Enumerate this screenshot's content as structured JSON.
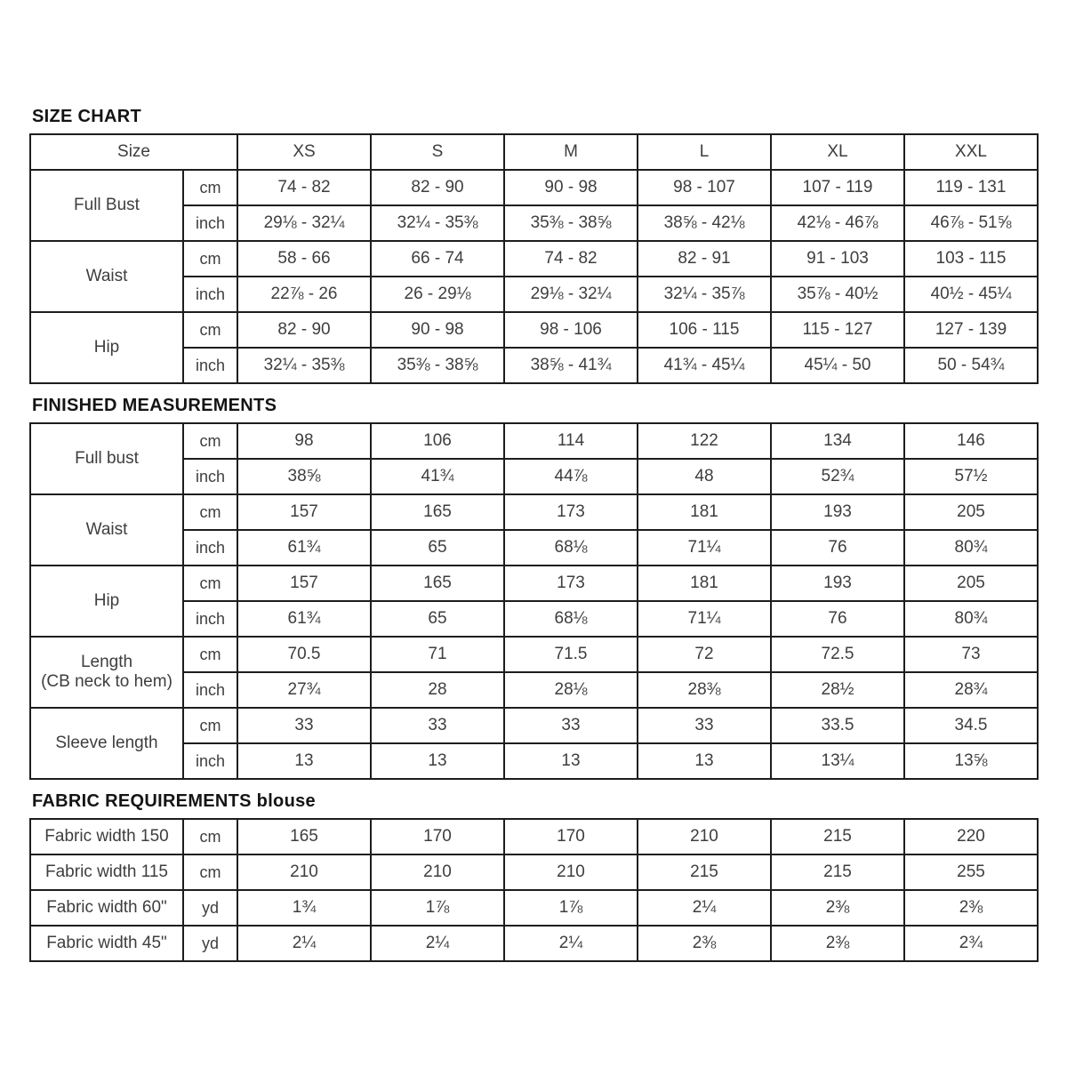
{
  "colors": {
    "background": "#ffffff",
    "border": "#1d1d1d",
    "table_text": "#3e3e3e",
    "title_text": "#141414"
  },
  "sections": {
    "size_chart": {
      "title": "SIZE CHART",
      "columns": [
        "Size",
        "XS",
        "S",
        "M",
        "L",
        "XL",
        "XXL"
      ],
      "groups": [
        {
          "label": "Full Bust",
          "rows": [
            {
              "unit": "cm",
              "values": [
                "74 - 82",
                "82 - 90",
                "90 - 98",
                "98 - 107",
                "107 - 119",
                "119 - 131"
              ]
            },
            {
              "unit": "inch",
              "values": [
                "29⅛ - 32¼",
                "32¼ - 35⅜",
                "35⅜ - 38⅝",
                "38⅝ - 42⅛",
                "42⅛ - 46⅞",
                "46⅞ - 51⅝"
              ]
            }
          ]
        },
        {
          "label": "Waist",
          "rows": [
            {
              "unit": "cm",
              "values": [
                "58 - 66",
                "66 - 74",
                "74 - 82",
                "82 - 91",
                "91 - 103",
                "103 - 115"
              ]
            },
            {
              "unit": "inch",
              "values": [
                "22⅞ - 26",
                "26 - 29⅛",
                "29⅛ - 32¼",
                "32¼ - 35⅞",
                "35⅞ - 40½",
                "40½ - 45¼"
              ]
            }
          ]
        },
        {
          "label": "Hip",
          "rows": [
            {
              "unit": "cm",
              "values": [
                "82 - 90",
                "90 - 98",
                "98 - 106",
                "106 - 115",
                "115 - 127",
                "127 - 139"
              ]
            },
            {
              "unit": "inch",
              "values": [
                "32¼ - 35⅜",
                "35⅜ - 38⅝",
                "38⅝ - 41¾",
                "41¾ - 45¼",
                "45¼ - 50",
                "50 - 54¾"
              ]
            }
          ]
        }
      ]
    },
    "finished_measurements": {
      "title": "FINISHED MEASUREMENTS",
      "groups": [
        {
          "label": "Full bust",
          "rows": [
            {
              "unit": "cm",
              "values": [
                "98",
                "106",
                "114",
                "122",
                "134",
                "146"
              ]
            },
            {
              "unit": "inch",
              "values": [
                "38⅝",
                "41¾",
                "44⅞",
                "48",
                "52¾",
                "57½"
              ]
            }
          ]
        },
        {
          "label": "Waist",
          "rows": [
            {
              "unit": "cm",
              "values": [
                "157",
                "165",
                "173",
                "181",
                "193",
                "205"
              ]
            },
            {
              "unit": "inch",
              "values": [
                "61¾",
                "65",
                "68⅛",
                "71¼",
                "76",
                "80¾"
              ]
            }
          ]
        },
        {
          "label": "Hip",
          "rows": [
            {
              "unit": "cm",
              "values": [
                "157",
                "165",
                "173",
                "181",
                "193",
                "205"
              ]
            },
            {
              "unit": "inch",
              "values": [
                "61¾",
                "65",
                "68⅛",
                "71¼",
                "76",
                "80¾"
              ]
            }
          ]
        },
        {
          "label": "Length\n(CB neck to hem)",
          "rows": [
            {
              "unit": "cm",
              "values": [
                "70.5",
                "71",
                "71.5",
                "72",
                "72.5",
                "73"
              ]
            },
            {
              "unit": "inch",
              "values": [
                "27¾",
                "28",
                "28⅛",
                "28⅜",
                "28½",
                "28¾"
              ]
            }
          ]
        },
        {
          "label": "Sleeve length",
          "rows": [
            {
              "unit": "cm",
              "values": [
                "33",
                "33",
                "33",
                "33",
                "33.5",
                "34.5"
              ]
            },
            {
              "unit": "inch",
              "values": [
                "13",
                "13",
                "13",
                "13",
                "13¼",
                "13⅝"
              ]
            }
          ]
        }
      ]
    },
    "fabric_requirements": {
      "title": "FABRIC REQUIREMENTS blouse",
      "rows": [
        {
          "label": "Fabric width 150",
          "unit": "cm",
          "values": [
            "165",
            "170",
            "170",
            "210",
            "215",
            "220"
          ]
        },
        {
          "label": "Fabric width 115",
          "unit": "cm",
          "values": [
            "210",
            "210",
            "210",
            "215",
            "215",
            "255"
          ]
        },
        {
          "label": "Fabric width 60\"",
          "unit": "yd",
          "values": [
            "1¾",
            "1⅞",
            "1⅞",
            "2¼",
            "2⅜",
            "2⅜"
          ]
        },
        {
          "label": "Fabric width 45\"",
          "unit": "yd",
          "values": [
            "2¼",
            "2¼",
            "2¼",
            "2⅜",
            "2⅜",
            "2¾"
          ]
        }
      ]
    }
  }
}
